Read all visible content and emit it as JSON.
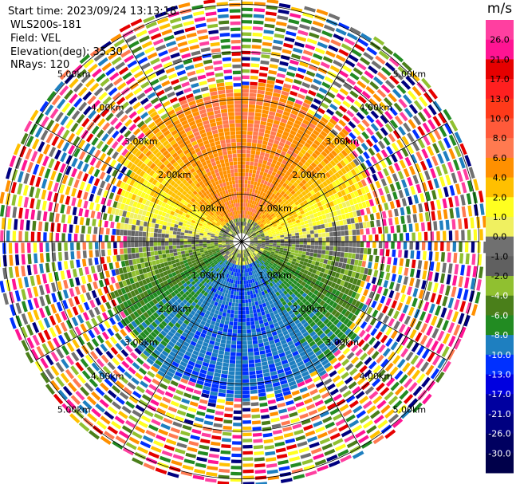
{
  "header": {
    "start_time": "Start time: 2023/09/24 13:13:18",
    "instrument": "WLS200s-181",
    "field": "Field: VEL",
    "elevation": "Elevation(deg): 35.30",
    "nrays": "NRays: 120"
  },
  "colorbar": {
    "unit": "m/s",
    "levels": [
      "26.0",
      "21.0",
      "17.0",
      "13.0",
      "10.0",
      "8.0",
      "6.0",
      "4.0",
      "2.0",
      "1.0",
      "0.0",
      "-1.0",
      "-2.0",
      "-4.0",
      "-6.0",
      "-8.0",
      "-10.0",
      "-13.0",
      "-17.0",
      "-21.0",
      "-26.0",
      "-30.0"
    ],
    "colors": [
      "#ff3fa0",
      "#ff1493",
      "#e60000",
      "#ff2020",
      "#ff3a1a",
      "#ff5a3a",
      "#ff7a50",
      "#ff9000",
      "#ffc000",
      "#ffff20",
      "#f0f060",
      "#707070",
      "#606060",
      "#90c030",
      "#4a7f1a",
      "#228b22",
      "#1e7fc0",
      "#0030ff",
      "#0000e0",
      "#0000a0",
      "#000080",
      "#000060",
      "#00004a"
    ]
  },
  "chart_data": {
    "type": "heatmap",
    "projection": "polar PPI",
    "field": "VEL",
    "units": "m/s",
    "nrays": 120,
    "range_rings_km": [
      1.0,
      2.0,
      3.0,
      4.0,
      5.0
    ],
    "ring_labels": [
      "1.00km",
      "2.00km",
      "3.00km",
      "4.00km",
      "5.00km"
    ],
    "vmin": -30.0,
    "vmax": 26.0
  }
}
